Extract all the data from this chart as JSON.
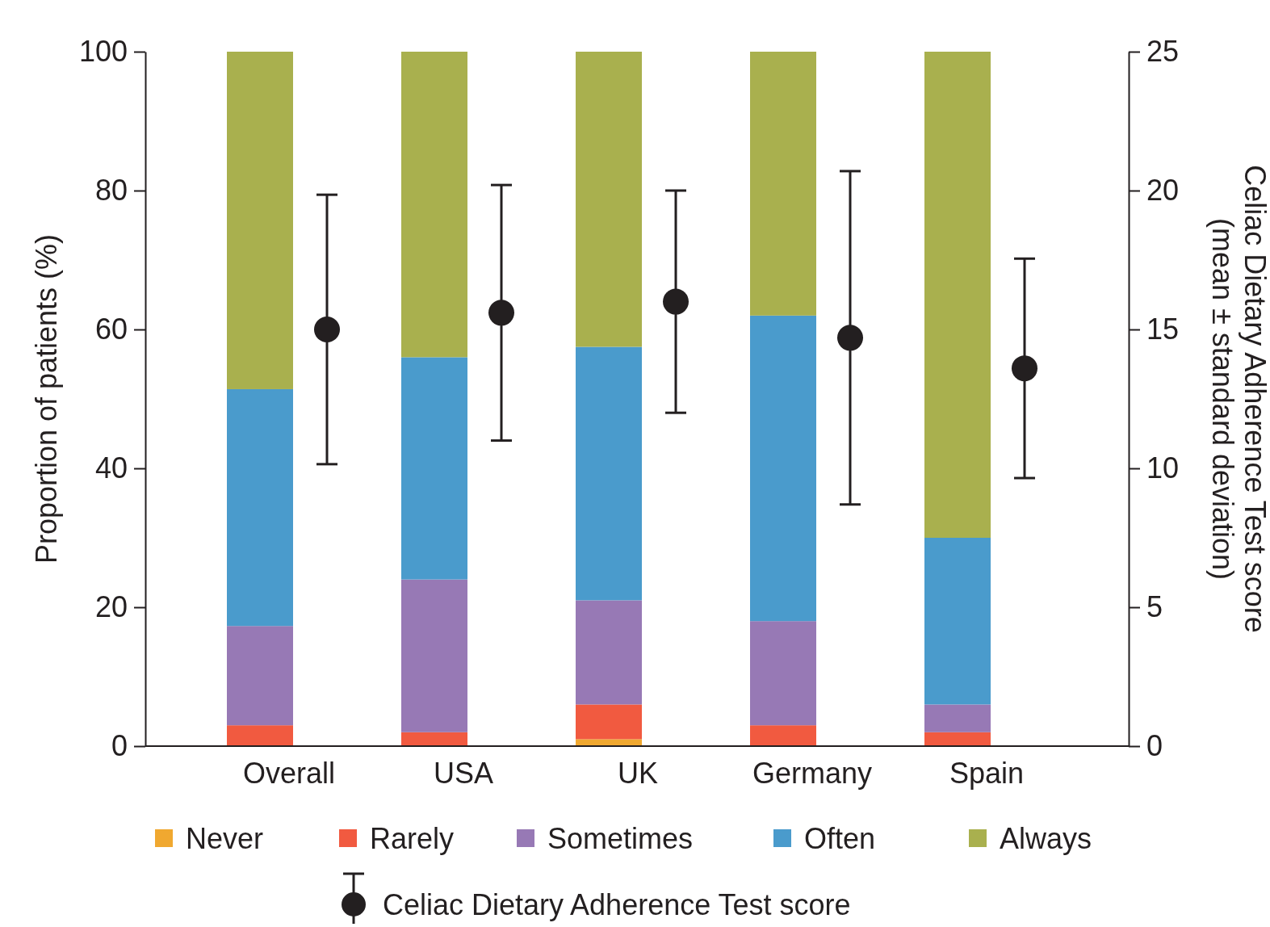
{
  "chart_data": {
    "type": "bar",
    "stacked": true,
    "categories": [
      "Overall",
      "USA",
      "UK",
      "Germany",
      "Spain"
    ],
    "ylabel": "Proportion of patients (%)",
    "y2label": "Celiac Dietary Adherence Test score\n(mean ± standard deviation)",
    "ylim": [
      0,
      100
    ],
    "yticks": [
      0,
      20,
      40,
      60,
      80,
      100
    ],
    "y2lim": [
      0,
      25
    ],
    "y2ticks": [
      0,
      5,
      10,
      15,
      20,
      25
    ],
    "legend": "bottom",
    "grid": false,
    "series": [
      {
        "name": "Never",
        "color": "#f0a830",
        "values": [
          0,
          0,
          1,
          0,
          0
        ]
      },
      {
        "name": "Rarely",
        "color": "#f15a40",
        "values": [
          3,
          2,
          5,
          3,
          2
        ]
      },
      {
        "name": "Sometimes",
        "color": "#9779b5",
        "values": [
          14.3,
          22,
          15,
          15,
          4
        ]
      },
      {
        "name": "Often",
        "color": "#4a9bcc",
        "values": [
          34.1,
          32,
          36.5,
          44,
          24
        ]
      },
      {
        "name": "Always",
        "color": "#a9b04e",
        "values": [
          48.6,
          44,
          42.5,
          38,
          70
        ]
      },
      {
        "name": "Celiac Dietary Adherence Test score",
        "type": "scatter",
        "axis": "y2",
        "marker": "circle",
        "color": "#231f20",
        "x": [
          "Overall",
          "USA",
          "UK",
          "Germany",
          "Spain"
        ],
        "values": [
          15,
          15.6,
          16,
          14.7,
          13.6
        ],
        "errors": [
          4.85,
          4.6,
          4,
          6,
          3.95
        ]
      }
    ]
  }
}
